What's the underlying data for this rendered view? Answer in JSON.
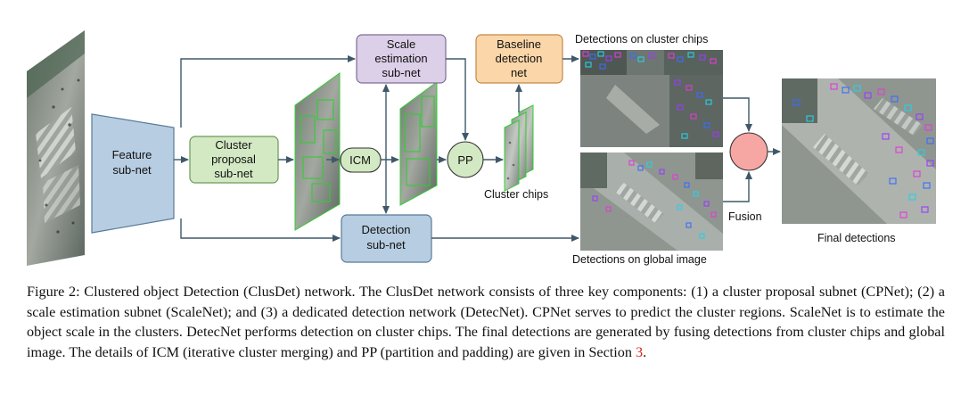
{
  "nodes": {
    "feature": [
      "Feature",
      "sub-net"
    ],
    "cluster_proposal": [
      "Cluster",
      "proposal",
      "sub-net"
    ],
    "icm": [
      "ICM"
    ],
    "scale_estimation": [
      "Scale",
      "estimation",
      "sub-net"
    ],
    "pp": [
      "PP"
    ],
    "baseline": [
      "Baseline",
      "detection",
      "net"
    ],
    "detection": [
      "Detection",
      "sub-net"
    ]
  },
  "labels": {
    "detections_cluster_chips": "Detections on cluster chips",
    "detections_global_image": "Detections on global image",
    "cluster_chips": "Cluster chips",
    "fusion": "Fusion",
    "final_detections": "Final detections"
  },
  "caption": {
    "text": "Figure 2: Clustered object Detection (ClusDet) network. The ClusDet network consists of three key components: (1) a cluster proposal subnet (CPNet); (2) a scale estimation subnet (ScaleNet); and (3) a dedicated detection network (DetecNet). CPNet serves to predict the cluster regions. ScaleNet is to estimate the object scale in the clusters. DetecNet performs detection on cluster chips. The final detections are generated by fusing detections from cluster chips and global image. The details of ICM (iterative cluster merging) and PP (partition and padding) are given in Section",
    "section_ref": "3",
    "end": "."
  },
  "colors": {
    "feature_fill": "#b7cde1",
    "feature_stroke": "#5a7a99",
    "cluster_fill": "#d3e9c4",
    "cluster_stroke": "#6a9a55",
    "scale_fill": "#dccfe8",
    "scale_stroke": "#7f6c98",
    "baseline_fill": "#fbd6a8",
    "baseline_stroke": "#c08a4a",
    "detection_fill": "#b7cde1",
    "detection_stroke": "#5a7a99",
    "icm_fill": "#d3e9c4",
    "pp_fill": "#d3e9c4",
    "fusion_fill": "#f6a7a4",
    "arrow": "#3f5869",
    "chip_border": "#33cc33",
    "section_ref": "#d9231f"
  }
}
